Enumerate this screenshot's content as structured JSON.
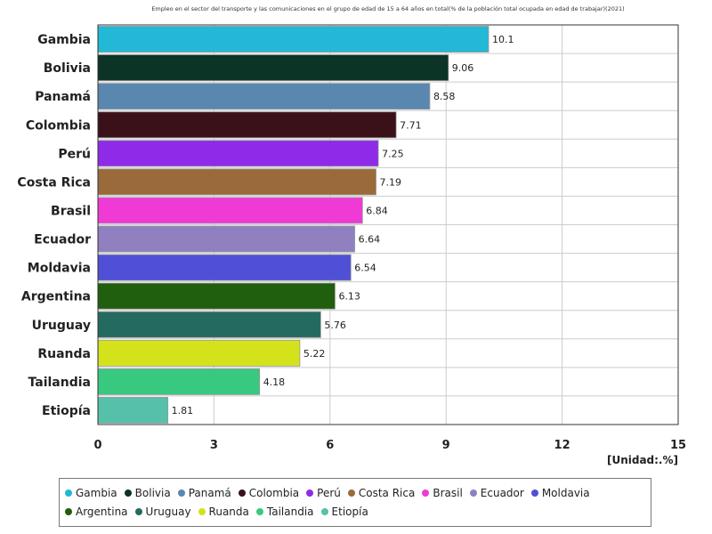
{
  "chart_data": {
    "type": "bar",
    "orientation": "horizontal",
    "title": "Empleo en el sector del transporte y las comunicaciones en el grupo de edad de 15 a 64 años en total(% de la población total ocupada en edad de trabajar)(2021)",
    "unit_label": "[Unidad:.%]",
    "xlim": [
      0,
      15
    ],
    "x_ticks": [
      "0",
      "3",
      "6",
      "9",
      "12",
      "15"
    ],
    "grid": true,
    "legend_position": "bottom",
    "categories": [
      "Gambia",
      "Bolivia",
      "Panamá",
      "Colombia",
      "Perú",
      "Costa Rica",
      "Brasil",
      "Ecuador",
      "Moldavia",
      "Argentina",
      "Uruguay",
      "Ruanda",
      "Tailandia",
      "Etiopía"
    ],
    "values": [
      10.1,
      9.06,
      8.58,
      7.71,
      7.25,
      7.19,
      6.84,
      6.64,
      6.54,
      6.13,
      5.76,
      5.22,
      4.18,
      1.81
    ],
    "value_labels": [
      "10.1",
      "9.06",
      "8.58",
      "7.71",
      "7.25",
      "7.19",
      "6.84",
      "6.64",
      "6.54",
      "6.13",
      "5.76",
      "5.22",
      "4.18",
      "1.81"
    ],
    "colors": [
      "#22b8d6",
      "#0b3326",
      "#5a87b0",
      "#3b1119",
      "#8f2be8",
      "#9a6a3b",
      "#f03ad6",
      "#9080c0",
      "#5050d6",
      "#1f5f0d",
      "#256a60",
      "#d4e21c",
      "#39c880",
      "#56c0aa"
    ]
  }
}
